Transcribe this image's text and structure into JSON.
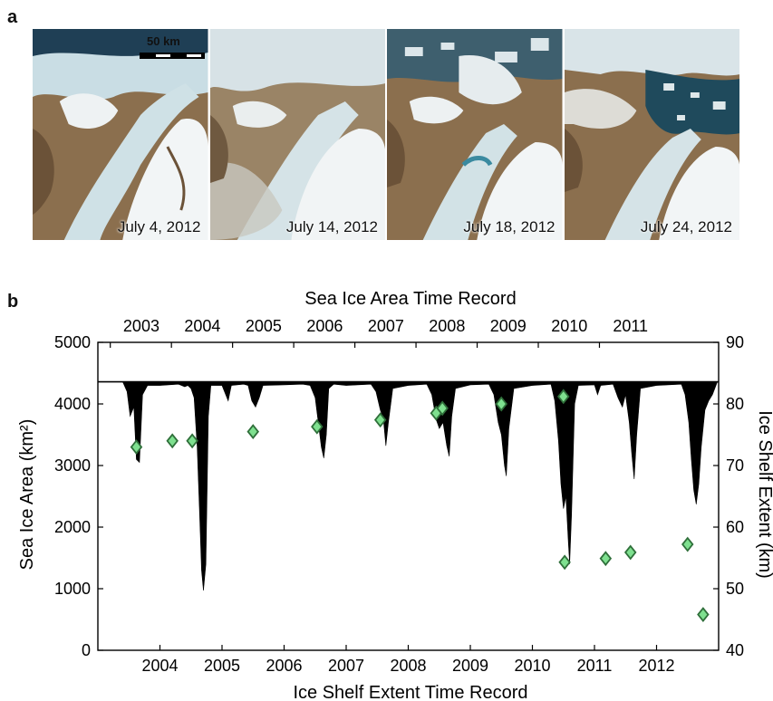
{
  "panel_a": {
    "label": "a",
    "scale_bar": "50 km",
    "tiles": [
      {
        "date": "July 4, 2012",
        "stage": "intact"
      },
      {
        "date": "July 14, 2012",
        "stage": "cloudy"
      },
      {
        "date": "July 18, 2012",
        "stage": "breakup"
      },
      {
        "date": "July 24, 2012",
        "stage": "open-water"
      }
    ],
    "colors": {
      "land": "#8b6f4e",
      "land_dark": "#6b5238",
      "ice": "#e9eff2",
      "sea_ice": "#c9dde4",
      "water": "#1f3f55",
      "melt": "#5aa5b8"
    }
  },
  "panel_b": {
    "label": "b"
  },
  "chart_data": {
    "type": "area",
    "title": "Sea Ice Area Time Record",
    "xlabel": "Ice Shelf Extent Time Record",
    "ylabel": "Sea Ice Area (km²)",
    "ylabel_right": "Ice Shelf Extent (km)",
    "ylim": [
      0,
      5000
    ],
    "ylim_right": [
      40,
      90
    ],
    "xlim": [
      2003.0,
      2013.0
    ],
    "yticks": [
      "0",
      "1000",
      "2000",
      "3000",
      "4000",
      "5000"
    ],
    "yticks_right": [
      "40",
      "50",
      "60",
      "70",
      "80",
      "90"
    ],
    "xticks_bottom": [
      "2004",
      "2005",
      "2006",
      "2007",
      "2008",
      "2009",
      "2010",
      "2011",
      "2012"
    ],
    "xticks_top": [
      "2003",
      "2004",
      "2005",
      "2006",
      "2007",
      "2008",
      "2009",
      "2010",
      "2011"
    ],
    "reference_line": 4360,
    "grid": false,
    "series": [
      {
        "kind": "area",
        "color": "#000000",
        "axis": "left",
        "baseline": 4360,
        "points": [
          [
            2003.0,
            4360
          ],
          [
            2003.4,
            4360
          ],
          [
            2003.47,
            4200
          ],
          [
            2003.52,
            3800
          ],
          [
            2003.58,
            3950
          ],
          [
            2003.62,
            3100
          ],
          [
            2003.67,
            3050
          ],
          [
            2003.72,
            4150
          ],
          [
            2003.8,
            4300
          ],
          [
            2004.0,
            4300
          ],
          [
            2004.3,
            4320
          ],
          [
            2004.4,
            4280
          ],
          [
            2004.45,
            4300
          ],
          [
            2004.5,
            4250
          ],
          [
            2004.55,
            4100
          ],
          [
            2004.6,
            3300
          ],
          [
            2004.64,
            2200
          ],
          [
            2004.67,
            1300
          ],
          [
            2004.7,
            970
          ],
          [
            2004.74,
            1400
          ],
          [
            2004.78,
            3800
          ],
          [
            2004.82,
            4300
          ],
          [
            2005.0,
            4300
          ],
          [
            2005.1,
            4050
          ],
          [
            2005.15,
            4300
          ],
          [
            2005.35,
            4320
          ],
          [
            2005.42,
            4300
          ],
          [
            2005.48,
            4050
          ],
          [
            2005.54,
            3950
          ],
          [
            2005.6,
            4100
          ],
          [
            2005.66,
            4300
          ],
          [
            2006.0,
            4310
          ],
          [
            2006.3,
            4320
          ],
          [
            2006.42,
            4300
          ],
          [
            2006.5,
            4100
          ],
          [
            2006.55,
            3700
          ],
          [
            2006.6,
            3300
          ],
          [
            2006.64,
            3120
          ],
          [
            2006.68,
            3500
          ],
          [
            2006.72,
            4250
          ],
          [
            2006.8,
            4320
          ],
          [
            2007.0,
            4300
          ],
          [
            2007.4,
            4320
          ],
          [
            2007.48,
            4200
          ],
          [
            2007.55,
            3900
          ],
          [
            2007.6,
            3750
          ],
          [
            2007.64,
            3320
          ],
          [
            2007.68,
            3700
          ],
          [
            2007.75,
            4250
          ],
          [
            2008.0,
            4300
          ],
          [
            2008.3,
            4320
          ],
          [
            2008.38,
            4150
          ],
          [
            2008.45,
            3750
          ],
          [
            2008.5,
            3600
          ],
          [
            2008.56,
            3700
          ],
          [
            2008.62,
            3320
          ],
          [
            2008.66,
            3150
          ],
          [
            2008.7,
            3800
          ],
          [
            2008.76,
            4250
          ],
          [
            2009.0,
            4310
          ],
          [
            2009.3,
            4320
          ],
          [
            2009.38,
            4150
          ],
          [
            2009.45,
            3700
          ],
          [
            2009.5,
            3500
          ],
          [
            2009.55,
            3000
          ],
          [
            2009.58,
            2830
          ],
          [
            2009.62,
            3600
          ],
          [
            2009.7,
            4250
          ],
          [
            2010.0,
            4300
          ],
          [
            2010.3,
            4320
          ],
          [
            2010.36,
            4050
          ],
          [
            2010.42,
            3400
          ],
          [
            2010.46,
            2700
          ],
          [
            2010.5,
            2300
          ],
          [
            2010.54,
            2500
          ],
          [
            2010.58,
            1750
          ],
          [
            2010.6,
            1400
          ],
          [
            2010.63,
            2200
          ],
          [
            2010.68,
            4000
          ],
          [
            2010.74,
            4300
          ],
          [
            2011.0,
            4310
          ],
          [
            2011.05,
            4150
          ],
          [
            2011.1,
            4300
          ],
          [
            2011.3,
            4320
          ],
          [
            2011.38,
            4100
          ],
          [
            2011.45,
            3950
          ],
          [
            2011.5,
            4150
          ],
          [
            2011.56,
            3700
          ],
          [
            2011.6,
            3200
          ],
          [
            2011.64,
            2780
          ],
          [
            2011.68,
            3500
          ],
          [
            2011.74,
            4250
          ],
          [
            2012.0,
            4300
          ],
          [
            2012.4,
            4320
          ],
          [
            2012.46,
            4150
          ],
          [
            2012.52,
            3700
          ],
          [
            2012.56,
            3100
          ],
          [
            2012.6,
            2600
          ],
          [
            2012.64,
            2370
          ],
          [
            2012.68,
            2700
          ],
          [
            2012.72,
            3300
          ],
          [
            2012.78,
            3900
          ],
          [
            2012.84,
            4050
          ],
          [
            2012.9,
            4150
          ],
          [
            2012.98,
            4360
          ],
          [
            2013.0,
            4360
          ]
        ]
      },
      {
        "kind": "scatter",
        "marker": "diamond",
        "color": "#7ee08f",
        "edge": "#2f6f3a",
        "axis": "right",
        "x": [
          2003.62,
          2004.2,
          2004.52,
          2005.5,
          2006.53,
          2007.55,
          2008.45,
          2008.55,
          2009.5,
          2010.5,
          2010.52,
          2011.18,
          2011.58,
          2012.5,
          2012.75
        ],
        "y": [
          73,
          74,
          74,
          75.5,
          76.3,
          77.4,
          78.5,
          79.3,
          80,
          81.2,
          54.3,
          54.9,
          55.9,
          57.2,
          45.8
        ]
      }
    ]
  }
}
